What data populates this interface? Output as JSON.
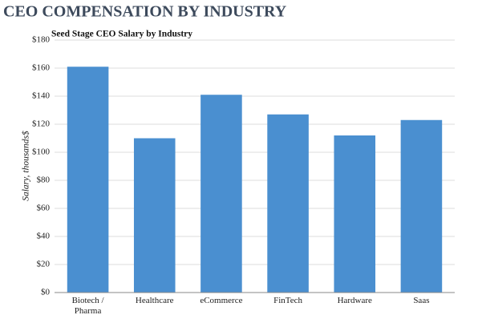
{
  "chart_data": {
    "type": "bar",
    "title": "CEO COMPENSATION BY INDUSTRY",
    "subtitle": "Seed Stage CEO Salary by Industry",
    "y_label": "Salary, thousands$",
    "categories": [
      "Biotech / Pharma",
      "Healthcare",
      "eCommerce",
      "FinTech",
      "Hardware",
      "Saas"
    ],
    "values": [
      161,
      110,
      141,
      127,
      112,
      123
    ],
    "color": "#4a8fd0",
    "ylim": [
      0,
      180
    ],
    "yticks": [
      {
        "value": 0,
        "label": "$0"
      },
      {
        "value": 20,
        "label": "$20"
      },
      {
        "value": 40,
        "label": "$40"
      },
      {
        "value": 60,
        "label": "$60"
      },
      {
        "value": 80,
        "label": "$80"
      },
      {
        "value": 100,
        "label": "$100"
      },
      {
        "value": 120,
        "label": "$120"
      },
      {
        "value": 140,
        "label": "$140"
      },
      {
        "value": 160,
        "label": "$160"
      },
      {
        "value": 180,
        "label": "$180"
      }
    ],
    "grid": true
  }
}
